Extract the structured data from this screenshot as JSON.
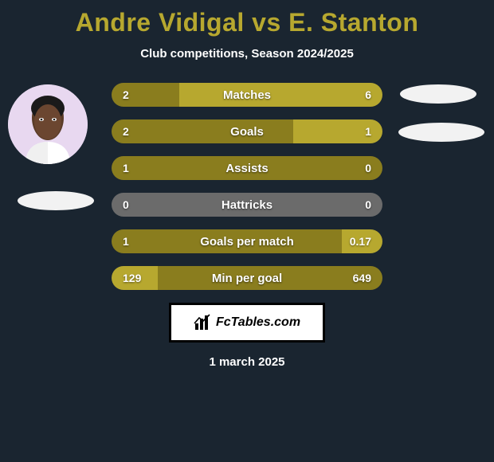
{
  "title_color": "#b7a82f",
  "background_color": "#1a2530",
  "title": "Andre Vidigal vs E. Stanton",
  "subtitle": "Club competitions, Season 2024/2025",
  "date": "1 march 2025",
  "brand": "FcTables.com",
  "bar_colors": {
    "left_dark": "#8a7d1e",
    "right_olive": "#b7a82f",
    "neutral_gray": "#6b6b6b"
  },
  "bars": [
    {
      "label": "Matches",
      "left": "2",
      "right": "6",
      "left_pct": 25,
      "left_color": "#8a7d1e",
      "right_color": "#b7a82f"
    },
    {
      "label": "Goals",
      "left": "2",
      "right": "1",
      "left_pct": 67,
      "left_color": "#8a7d1e",
      "right_color": "#b7a82f"
    },
    {
      "label": "Assists",
      "left": "1",
      "right": "0",
      "left_pct": 100,
      "left_color": "#8a7d1e",
      "right_color": "#b7a82f"
    },
    {
      "label": "Hattricks",
      "left": "0",
      "right": "0",
      "left_pct": 0,
      "left_color": "#6b6b6b",
      "right_color": "#6b6b6b"
    },
    {
      "label": "Goals per match",
      "left": "1",
      "right": "0.17",
      "left_pct": 85,
      "left_color": "#8a7d1e",
      "right_color": "#b7a82f"
    },
    {
      "label": "Min per goal",
      "left": "129",
      "right": "649",
      "left_pct": 17,
      "left_color": "#b7a82f",
      "right_color": "#8a7d1e"
    }
  ]
}
